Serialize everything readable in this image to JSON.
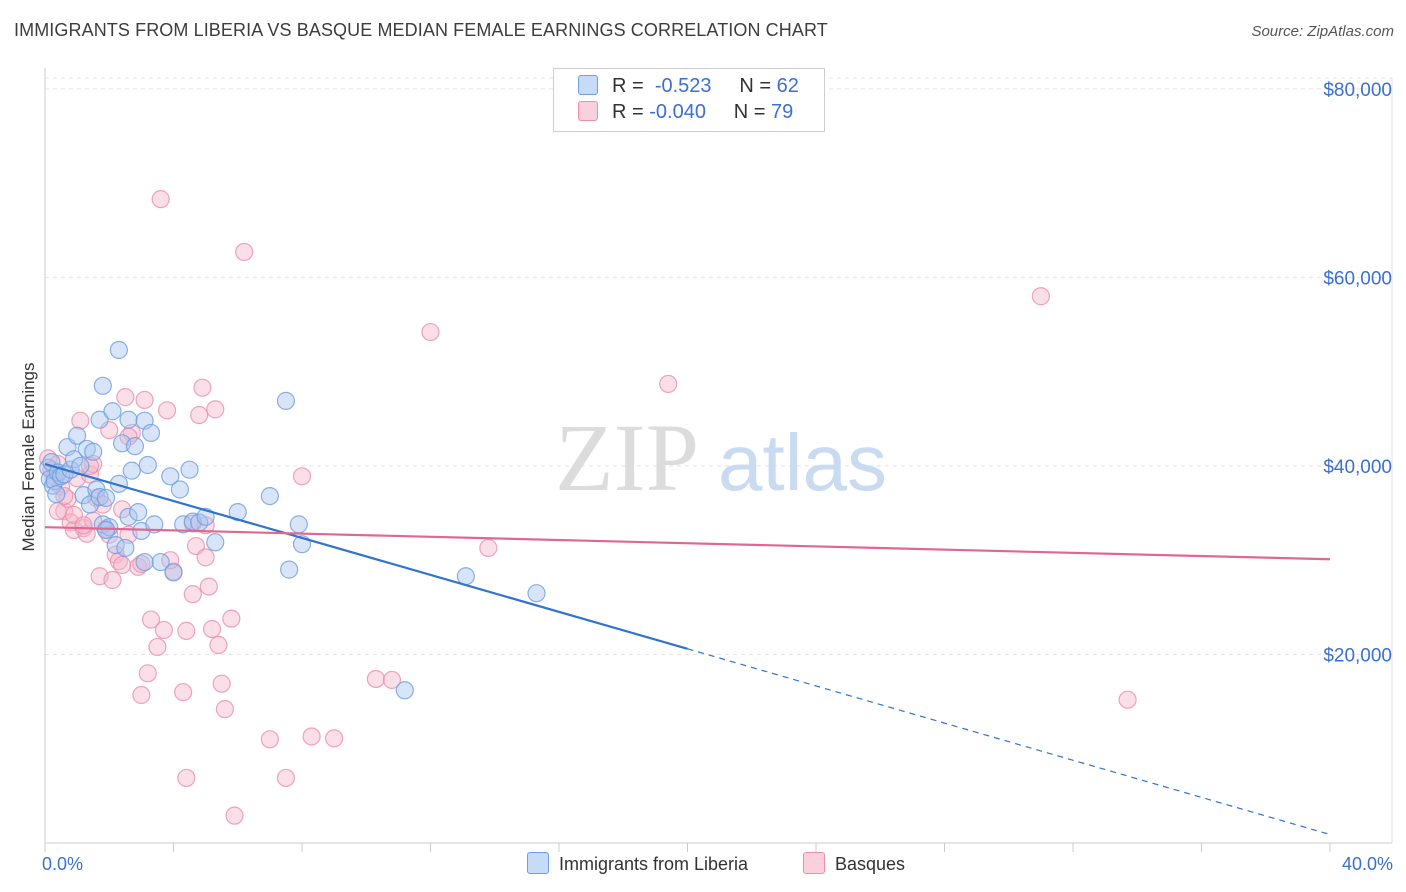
{
  "title": "IMMIGRANTS FROM LIBERIA VS BASQUE MEDIAN FEMALE EARNINGS CORRELATION CHART",
  "source": "Source: ZipAtlas.com",
  "watermark": {
    "zip": "ZIP",
    "atlas": "atlas"
  },
  "legend": {
    "items": [
      {
        "r_label": "R =",
        "r_value": "-0.523",
        "n_label": "N =",
        "n_value": "62"
      },
      {
        "r_label": "R =",
        "r_value": "-0.040",
        "n_label": "N =",
        "n_value": "79"
      }
    ]
  },
  "colors": {
    "blue_fill": "#a9c6f0",
    "blue_stroke": "#6e9de0",
    "blue_line": "#2f74d0",
    "pink_fill": "#f5b8cb",
    "pink_stroke": "#ea8eaa",
    "pink_line": "#e06890",
    "axis_label": "#3b6fd0",
    "grid": "#e4e4e4"
  },
  "chart_data": {
    "type": "scatter",
    "title": "IMMIGRANTS FROM LIBERIA VS BASQUE MEDIAN FEMALE EARNINGS CORRELATION CHART",
    "xlabel": "",
    "ylabel": "Median Female Earnings",
    "xlim": [
      0,
      40
    ],
    "ylim": [
      0,
      82000
    ],
    "x_tick_labels": [
      "0.0%",
      "40.0%"
    ],
    "y_ticks": [
      20000,
      40000,
      60000,
      80000
    ],
    "y_tick_labels": [
      "$20,000",
      "$40,000",
      "$60,000",
      "$80,000"
    ],
    "series": [
      {
        "name": "Immigrants from Liberia",
        "color": "blue",
        "r": -0.523,
        "n": 62,
        "trend": {
          "x0": 0,
          "y0": 40200,
          "x1": 20,
          "y1": 20600,
          "dash_to_x": 40,
          "dash_to_y": 900
        },
        "points": [
          [
            0.1,
            39800
          ],
          [
            0.15,
            38600
          ],
          [
            0.2,
            40400
          ],
          [
            0.25,
            37900
          ],
          [
            0.3,
            38400
          ],
          [
            0.35,
            37000
          ],
          [
            0.4,
            39300
          ],
          [
            0.5,
            38900
          ],
          [
            0.6,
            39100
          ],
          [
            0.7,
            42000
          ],
          [
            0.8,
            39600
          ],
          [
            0.9,
            40700
          ],
          [
            1.0,
            43200
          ],
          [
            1.1,
            40000
          ],
          [
            1.2,
            36900
          ],
          [
            1.3,
            41800
          ],
          [
            1.4,
            35900
          ],
          [
            1.5,
            41500
          ],
          [
            1.6,
            37500
          ],
          [
            1.7,
            36700
          ],
          [
            1.7,
            44900
          ],
          [
            1.8,
            33800
          ],
          [
            1.9,
            36600
          ],
          [
            2.0,
            33500
          ],
          [
            2.1,
            45800
          ],
          [
            2.2,
            31600
          ],
          [
            2.3,
            38100
          ],
          [
            2.4,
            42400
          ],
          [
            2.5,
            31300
          ],
          [
            2.6,
            34600
          ],
          [
            2.6,
            44900
          ],
          [
            2.7,
            39500
          ],
          [
            2.8,
            42100
          ],
          [
            2.9,
            35100
          ],
          [
            3.0,
            33100
          ],
          [
            3.1,
            44800
          ],
          [
            3.2,
            40100
          ],
          [
            3.3,
            43500
          ],
          [
            3.4,
            33800
          ],
          [
            3.6,
            29800
          ],
          [
            3.9,
            38900
          ],
          [
            4.2,
            37500
          ],
          [
            4.3,
            33800
          ],
          [
            4.5,
            39600
          ],
          [
            4.6,
            34100
          ],
          [
            4.8,
            34000
          ],
          [
            5.0,
            34600
          ],
          [
            5.3,
            31900
          ],
          [
            6.0,
            35100
          ],
          [
            7.0,
            36800
          ],
          [
            7.5,
            46900
          ],
          [
            7.6,
            29000
          ],
          [
            7.9,
            33800
          ],
          [
            8.0,
            31700
          ],
          [
            11.2,
            16200
          ],
          [
            13.1,
            28300
          ],
          [
            15.3,
            26500
          ],
          [
            2.3,
            52300
          ],
          [
            1.8,
            48500
          ],
          [
            1.9,
            33200
          ],
          [
            4.0,
            28700
          ],
          [
            3.1,
            29800
          ]
        ]
      },
      {
        "name": "Basques",
        "color": "pink",
        "r": -0.04,
        "n": 79,
        "trend": {
          "x0": 0,
          "y0": 33500,
          "x1": 40,
          "y1": 30100
        },
        "points": [
          [
            0.1,
            40800
          ],
          [
            0.2,
            39600
          ],
          [
            0.3,
            38800
          ],
          [
            0.4,
            40200
          ],
          [
            0.5,
            37800
          ],
          [
            0.6,
            35200
          ],
          [
            0.7,
            36500
          ],
          [
            0.8,
            34000
          ],
          [
            0.9,
            33200
          ],
          [
            1.0,
            38700
          ],
          [
            1.1,
            44800
          ],
          [
            1.2,
            33400
          ],
          [
            1.3,
            32800
          ],
          [
            1.4,
            39100
          ],
          [
            1.5,
            40200
          ],
          [
            1.6,
            36600
          ],
          [
            1.7,
            28300
          ],
          [
            1.8,
            35900
          ],
          [
            1.9,
            33300
          ],
          [
            2.0,
            43800
          ],
          [
            2.1,
            27900
          ],
          [
            2.2,
            30600
          ],
          [
            2.3,
            29900
          ],
          [
            2.4,
            35400
          ],
          [
            2.5,
            47300
          ],
          [
            2.6,
            32700
          ],
          [
            2.7,
            43500
          ],
          [
            2.9,
            29300
          ],
          [
            3.0,
            29600
          ],
          [
            3.1,
            47000
          ],
          [
            3.3,
            23700
          ],
          [
            3.5,
            20800
          ],
          [
            3.6,
            68300
          ],
          [
            3.7,
            22600
          ],
          [
            3.8,
            45900
          ],
          [
            4.0,
            28800
          ],
          [
            4.3,
            16000
          ],
          [
            4.4,
            22500
          ],
          [
            4.6,
            33900
          ],
          [
            4.7,
            31500
          ],
          [
            4.8,
            45400
          ],
          [
            4.9,
            48300
          ],
          [
            5.0,
            30300
          ],
          [
            5.1,
            27200
          ],
          [
            5.2,
            22700
          ],
          [
            5.3,
            46000
          ],
          [
            5.4,
            21000
          ],
          [
            5.5,
            16900
          ],
          [
            5.6,
            14200
          ],
          [
            5.8,
            23800
          ],
          [
            6.2,
            62700
          ],
          [
            7.0,
            11000
          ],
          [
            7.5,
            6900
          ],
          [
            8.0,
            38900
          ],
          [
            8.3,
            11300
          ],
          [
            9.0,
            11100
          ],
          [
            10.3,
            17400
          ],
          [
            10.8,
            17300
          ],
          [
            12.0,
            54200
          ],
          [
            13.8,
            31300
          ],
          [
            19.4,
            48700
          ],
          [
            31.0,
            58000
          ],
          [
            33.7,
            15200
          ],
          [
            5.9,
            2900
          ],
          [
            4.4,
            6900
          ],
          [
            3.0,
            15700
          ],
          [
            3.2,
            18000
          ],
          [
            2.6,
            43100
          ],
          [
            1.4,
            40000
          ],
          [
            0.9,
            34800
          ],
          [
            1.5,
            34200
          ],
          [
            2.4,
            29500
          ],
          [
            3.9,
            30000
          ],
          [
            4.6,
            26400
          ],
          [
            5.0,
            33700
          ],
          [
            0.6,
            36800
          ],
          [
            1.2,
            33700
          ],
          [
            2.0,
            32700
          ],
          [
            0.4,
            35200
          ]
        ]
      }
    ]
  },
  "bottom_legend": [
    "Immigrants from Liberia",
    "Basques"
  ]
}
